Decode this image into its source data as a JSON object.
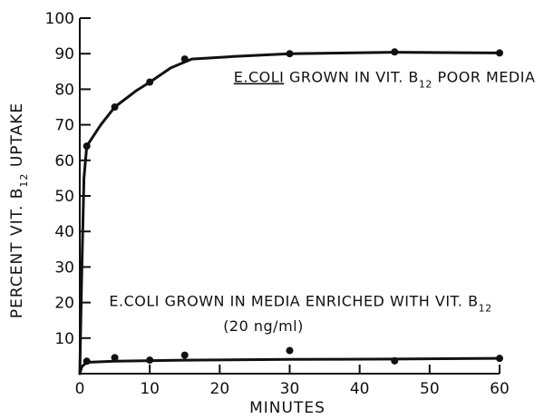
{
  "chart_data": {
    "type": "line",
    "title": "",
    "xlabel": "MINUTES",
    "ylabel": "PERCENT VIT. B12 UPTAKE",
    "ylabel_parts": {
      "main": "PERCENT VIT. B",
      "sub": "12",
      "end": " UPTAKE"
    },
    "xlim": [
      0,
      60
    ],
    "ylim": [
      0,
      100
    ],
    "xticks": [
      "0",
      "10",
      "20",
      "30",
      "40",
      "50",
      "60"
    ],
    "yticks": [
      "10",
      "20",
      "30",
      "40",
      "50",
      "60",
      "70",
      "80",
      "90",
      "100"
    ],
    "grid": false,
    "series": [
      {
        "points": [
          [
            1,
            64
          ],
          [
            5,
            75
          ],
          [
            10,
            82
          ],
          [
            15,
            88.5
          ],
          [
            30,
            90
          ],
          [
            45,
            90.5
          ],
          [
            60,
            90.2
          ]
        ],
        "curve": [
          [
            0,
            0
          ],
          [
            0.25,
            25
          ],
          [
            0.6,
            55
          ],
          [
            1,
            64
          ],
          [
            3,
            70
          ],
          [
            5,
            75
          ],
          [
            8,
            79.5
          ],
          [
            10,
            82
          ],
          [
            13,
            86
          ],
          [
            16,
            88.5
          ],
          [
            22,
            89.2
          ],
          [
            30,
            90
          ],
          [
            45,
            90.4
          ],
          [
            60,
            90.2
          ]
        ]
      },
      {
        "points": [
          [
            1,
            3.5
          ],
          [
            5,
            4.5
          ],
          [
            10,
            3.8
          ],
          [
            15,
            5.2
          ],
          [
            30,
            6.5
          ],
          [
            45,
            3.6
          ],
          [
            60,
            4.3
          ]
        ],
        "curve": [
          [
            0,
            0
          ],
          [
            0.3,
            2
          ],
          [
            1,
            3.2
          ],
          [
            5,
            3.5
          ],
          [
            15,
            3.8
          ],
          [
            30,
            4.0
          ],
          [
            45,
            4.1
          ],
          [
            60,
            4.3
          ]
        ]
      }
    ],
    "annotations": [
      {
        "main": "E.COLI",
        "rest": " GROWN IN VIT. B",
        "sub": "12",
        "end": " POOR MEDIA",
        "x": 22,
        "y": 82,
        "underline_first": true
      },
      {
        "main": "E.COLI GROWN IN MEDIA ENRICHED WITH VIT. B",
        "sub": "12",
        "x": 4.2,
        "y": 19,
        "underline_first": false
      },
      {
        "main": "(20 ng/ml)",
        "x": 20.5,
        "y": 12,
        "underline_first": false
      }
    ]
  }
}
